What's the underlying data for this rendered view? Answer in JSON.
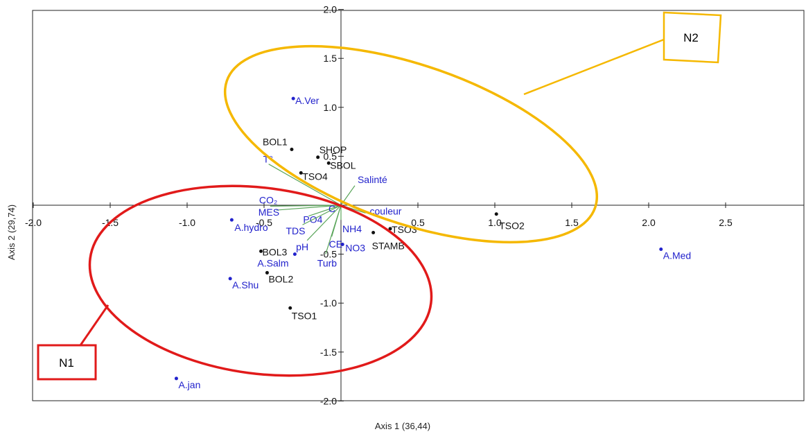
{
  "chart_data": {
    "type": "scatter",
    "xlabel": "Axis 1 (36,44)",
    "ylabel": "Axis 2 (29,74)",
    "xlim": [
      -2.0,
      2.98
    ],
    "ylim": [
      -2.0,
      2.0
    ],
    "xticks": [
      -2.0,
      -1.5,
      -1.0,
      -0.5,
      0.5,
      1.0,
      1.5,
      2.0,
      2.5
    ],
    "yticks": [
      -2.0,
      -1.5,
      -1.0,
      -0.5,
      0.5,
      1.0,
      1.5,
      2.0
    ],
    "xtick_labels": [
      "-2.0",
      "-1.5",
      "-1.0",
      "-0.5",
      "0.5",
      "1.0",
      "1.5",
      "2.0",
      "2.5"
    ],
    "ytick_labels": [
      "-2.0",
      "-1.5",
      "-1.0",
      "-0.5",
      "0.5",
      "1.0",
      "1.5",
      "2.0"
    ],
    "colors": {
      "species": "#2222cc",
      "sites": "#111111",
      "vectors": "#5aa55a",
      "n1": "#e11a1a",
      "n2": "#f5b800"
    },
    "sites": [
      {
        "label": "BOL1",
        "x": -0.32,
        "y": 0.57
      },
      {
        "label": "SHOP",
        "x": -0.15,
        "y": 0.49
      },
      {
        "label": "SBOL",
        "x": -0.08,
        "y": 0.43
      },
      {
        "label": "TSO4",
        "x": -0.26,
        "y": 0.33
      },
      {
        "label": "BOL3",
        "x": -0.52,
        "y": -0.47
      },
      {
        "label": "BOL2",
        "x": -0.48,
        "y": -0.69
      },
      {
        "label": "TSO1",
        "x": -0.33,
        "y": -1.05
      },
      {
        "label": "TSO3",
        "x": 0.32,
        "y": -0.24
      },
      {
        "label": "STAMB",
        "x": 0.21,
        "y": -0.28
      },
      {
        "label": "TSO2",
        "x": 1.01,
        "y": -0.09
      }
    ],
    "species": [
      {
        "label": "A.Ver",
        "x": -0.31,
        "y": 1.09
      },
      {
        "label": "A.hydro",
        "x": -0.71,
        "y": -0.15
      },
      {
        "label": "A.Salm",
        "x": -0.3,
        "y": -0.5
      },
      {
        "label": "A.Shu",
        "x": -0.72,
        "y": -0.75
      },
      {
        "label": "A.jan",
        "x": -1.07,
        "y": -1.77
      },
      {
        "label": "A.Med",
        "x": 2.08,
        "y": -0.45
      },
      {
        "label": "NO3",
        "x": 0.01,
        "y": -0.4
      }
    ],
    "vectors": [
      {
        "label": "T°",
        "x": -0.47,
        "y": 0.42
      },
      {
        "label": "Salinté",
        "x": 0.09,
        "y": 0.2
      },
      {
        "label": "couleur",
        "x": 0.16,
        "y": -0.08
      },
      {
        "label": "CO₂",
        "x": -0.46,
        "y": -0.01
      },
      {
        "label": "MES",
        "x": -0.42,
        "y": -0.05
      },
      {
        "label": "PO4",
        "x": -0.21,
        "y": -0.11
      },
      {
        "label": "TDS",
        "x": -0.25,
        "y": -0.2
      },
      {
        "label": "pH",
        "x": -0.22,
        "y": -0.36
      },
      {
        "label": "CE",
        "x": -0.06,
        "y": -0.32
      },
      {
        "label": "Turb",
        "x": -0.1,
        "y": -0.5
      },
      {
        "label": "NH4",
        "x": 0.0,
        "y": -0.15
      },
      {
        "label": "C",
        "x": 0.0,
        "y": 0.0
      }
    ],
    "groups": [
      {
        "label": "N1"
      },
      {
        "label": "N2"
      }
    ]
  }
}
